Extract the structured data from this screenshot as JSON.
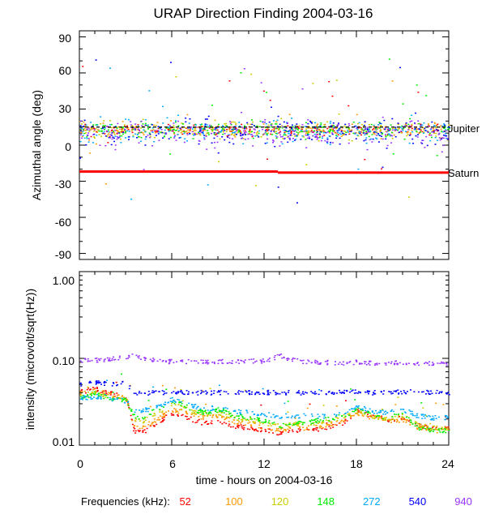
{
  "chart_data": [
    {
      "type": "scatter",
      "title": "URAP Direction Finding  2004-03-16",
      "ylabel": "Azimuthal angle (deg)",
      "xlim": [
        0,
        24
      ],
      "ylim": [
        -95,
        95
      ],
      "yticks": [
        "90",
        "60",
        "30",
        "0",
        "-30",
        "-60",
        "-90"
      ],
      "reference_lines": [
        {
          "label": "Jupiter",
          "y": 15,
          "color": "#000000"
        },
        {
          "label": "Saturn",
          "segments": [
            [
              0,
              12.9,
              -22
            ],
            [
              12.9,
              24,
              -22.8
            ]
          ],
          "color": "#ff0000"
        }
      ],
      "series": [
        {
          "name": "52",
          "color": "#ff0000",
          "band_center": 13,
          "band_spread": 3
        },
        {
          "name": "100",
          "color": "#ff9900",
          "band_center": 13,
          "band_spread": 4
        },
        {
          "name": "120",
          "color": "#cccc00",
          "band_center": 13,
          "band_spread": 5
        },
        {
          "name": "148",
          "color": "#00ee00",
          "band_center": 13,
          "band_spread": 5
        },
        {
          "name": "272",
          "color": "#00aaff",
          "band_center": 12,
          "band_spread": 7
        },
        {
          "name": "540",
          "color": "#0000ff",
          "band_center": 12,
          "band_spread": 8
        },
        {
          "name": "940",
          "color": "#9933ff",
          "band_center": 10,
          "band_spread": 8
        }
      ]
    },
    {
      "type": "scatter",
      "ylabel": "intensity (microvolt/sqrt(Hz))",
      "xlabel": "time - hours on 2004-03-16",
      "yscale": "log",
      "ylim": [
        0.01,
        1.0
      ],
      "yticks": [
        "1.00",
        "0.10",
        "0.01"
      ],
      "xticks": [
        "0",
        "6",
        "12",
        "18",
        "24"
      ],
      "x": [
        0,
        1,
        2,
        3,
        3.5,
        4,
        5,
        6,
        7,
        8,
        9,
        10,
        11,
        12,
        13,
        14,
        15,
        16,
        17,
        18,
        19,
        20,
        21,
        22,
        23,
        24
      ],
      "series": [
        {
          "name": "52",
          "color": "#ff0000",
          "values": [
            0.042,
            0.045,
            0.04,
            0.037,
            0.015,
            0.014,
            0.018,
            0.024,
            0.021,
            0.018,
            0.019,
            0.017,
            0.016,
            0.015,
            0.014,
            0.015,
            0.015,
            0.016,
            0.018,
            0.025,
            0.022,
            0.02,
            0.021,
            0.017,
            0.016,
            0.016
          ]
        },
        {
          "name": "100",
          "color": "#ff9900",
          "values": [
            0.04,
            0.043,
            0.038,
            0.035,
            0.017,
            0.016,
            0.02,
            0.026,
            0.024,
            0.021,
            0.022,
            0.019,
            0.018,
            0.016,
            0.015,
            0.016,
            0.016,
            0.017,
            0.019,
            0.024,
            0.021,
            0.019,
            0.02,
            0.016,
            0.015,
            0.015
          ]
        },
        {
          "name": "120",
          "color": "#cccc00",
          "values": [
            0.038,
            0.042,
            0.036,
            0.034,
            0.02,
            0.019,
            0.024,
            0.03,
            0.026,
            0.023,
            0.024,
            0.021,
            0.02,
            0.018,
            0.017,
            0.018,
            0.018,
            0.019,
            0.021,
            0.025,
            0.022,
            0.02,
            0.022,
            0.017,
            0.016,
            0.016
          ]
        },
        {
          "name": "148",
          "color": "#00ee00",
          "values": [
            0.036,
            0.04,
            0.035,
            0.033,
            0.022,
            0.021,
            0.026,
            0.033,
            0.028,
            0.024,
            0.026,
            0.022,
            0.021,
            0.019,
            0.017,
            0.018,
            0.019,
            0.02,
            0.022,
            0.026,
            0.023,
            0.021,
            0.024,
            0.016,
            0.015,
            0.015
          ]
        },
        {
          "name": "272",
          "color": "#00aaff",
          "values": [
            0.035,
            0.037,
            0.034,
            0.033,
            0.026,
            0.025,
            0.028,
            0.034,
            0.03,
            0.027,
            0.027,
            0.025,
            0.024,
            0.023,
            0.022,
            0.022,
            0.022,
            0.022,
            0.023,
            0.028,
            0.025,
            0.024,
            0.026,
            0.022,
            0.021,
            0.021
          ]
        },
        {
          "name": "540",
          "color": "#0000ff",
          "values": [
            0.052,
            0.053,
            0.052,
            0.052,
            0.04,
            0.04,
            0.041,
            0.041,
            0.041,
            0.041,
            0.041,
            0.041,
            0.041,
            0.041,
            0.041,
            0.041,
            0.041,
            0.041,
            0.041,
            0.042,
            0.041,
            0.041,
            0.042,
            0.041,
            0.041,
            0.041
          ]
        },
        {
          "name": "940",
          "color": "#9933ff",
          "values": [
            0.095,
            0.097,
            0.1,
            0.105,
            0.11,
            0.1,
            0.095,
            0.093,
            0.093,
            0.093,
            0.093,
            0.094,
            0.095,
            0.095,
            0.11,
            0.095,
            0.092,
            0.091,
            0.09,
            0.092,
            0.09,
            0.089,
            0.09,
            0.088,
            0.088,
            0.088
          ]
        }
      ]
    }
  ],
  "legend": {
    "label": "Frequencies (kHz):",
    "items": [
      {
        "text": "52",
        "color": "#ff0000"
      },
      {
        "text": "100",
        "color": "#ff9900"
      },
      {
        "text": "120",
        "color": "#cccc00"
      },
      {
        "text": "148",
        "color": "#00ee00"
      },
      {
        "text": "272",
        "color": "#00aaff"
      },
      {
        "text": "540",
        "color": "#0000ff"
      },
      {
        "text": "940",
        "color": "#9933ff"
      }
    ]
  }
}
